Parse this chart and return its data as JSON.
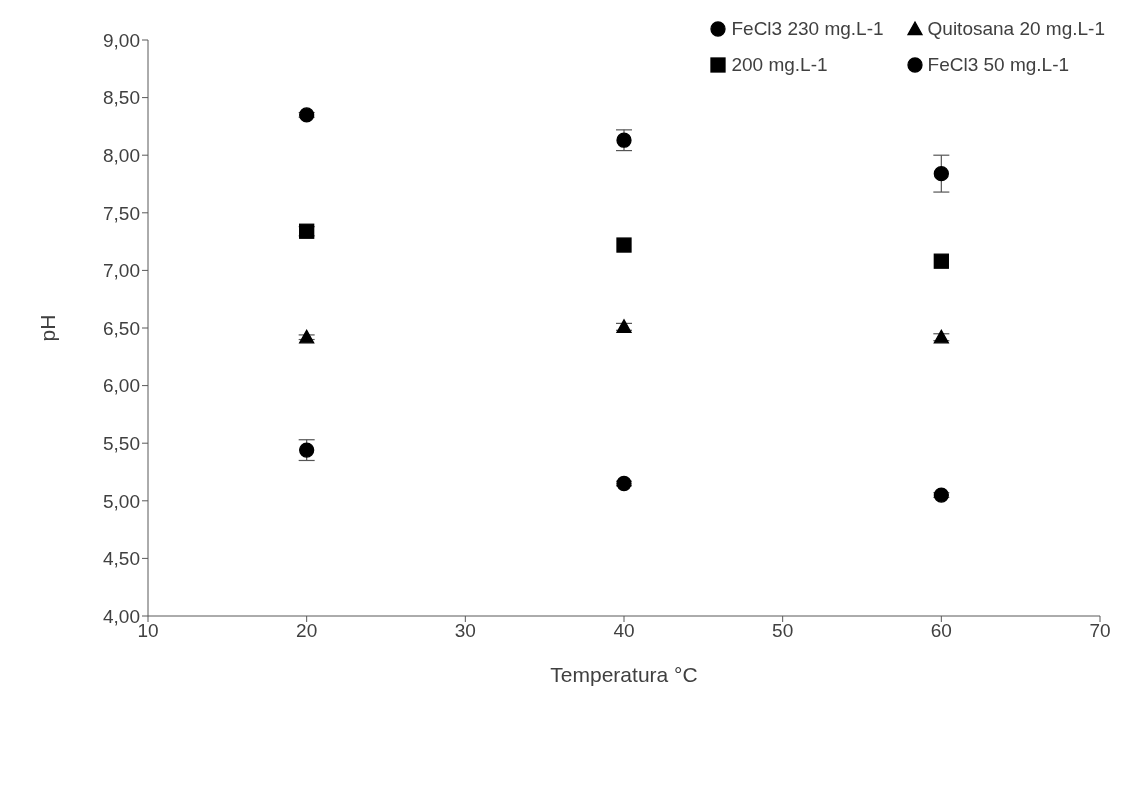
{
  "chart_data": {
    "type": "scatter",
    "xlabel": "Temperatura °C",
    "ylabel": "pH",
    "xlim": [
      10,
      70
    ],
    "xticks": [
      10,
      20,
      30,
      40,
      50,
      60,
      70
    ],
    "ylim": [
      4,
      9
    ],
    "yticks": [
      {
        "value": 4,
        "label": "4,00"
      },
      {
        "value": 4.5,
        "label": "4,50"
      },
      {
        "value": 5,
        "label": "5,00"
      },
      {
        "value": 5.5,
        "label": "5,50"
      },
      {
        "value": 6,
        "label": "6,00"
      },
      {
        "value": 6.5,
        "label": "6,50"
      },
      {
        "value": 7,
        "label": "7,00"
      },
      {
        "value": 7.5,
        "label": "7,50"
      },
      {
        "value": 8,
        "label": "8,00"
      },
      {
        "value": 8.5,
        "label": "8,50"
      },
      {
        "value": 9,
        "label": "9,00"
      }
    ],
    "x": [
      20,
      40,
      60
    ],
    "grid": false,
    "legend": "top right",
    "series": [
      {
        "name": "FeCl3 230 mg.L-1",
        "color": "#000000",
        "marker": "circle",
        "values": [
          5.44,
          5.15,
          5.05
        ],
        "errors": [
          0.09,
          0.02,
          0.02
        ]
      },
      {
        "name": "Quitosana 20 mg.L-1",
        "color": "#000000",
        "marker": "triangle",
        "values": [
          6.42,
          6.51,
          6.42
        ],
        "errors": [
          0.02,
          0.03,
          0.03
        ]
      },
      {
        "name": "200 mg.L-1",
        "color": "#000000",
        "marker": "square",
        "values": [
          7.34,
          7.22,
          7.08
        ],
        "errors": [
          0.04,
          null,
          null
        ]
      },
      {
        "name": "FeCl3 50 mg.L-1",
        "color": "#000000",
        "marker": "circle",
        "values": [
          8.35,
          8.13,
          7.84
        ],
        "errors": [
          0.02,
          0.09,
          0.16
        ]
      }
    ]
  }
}
